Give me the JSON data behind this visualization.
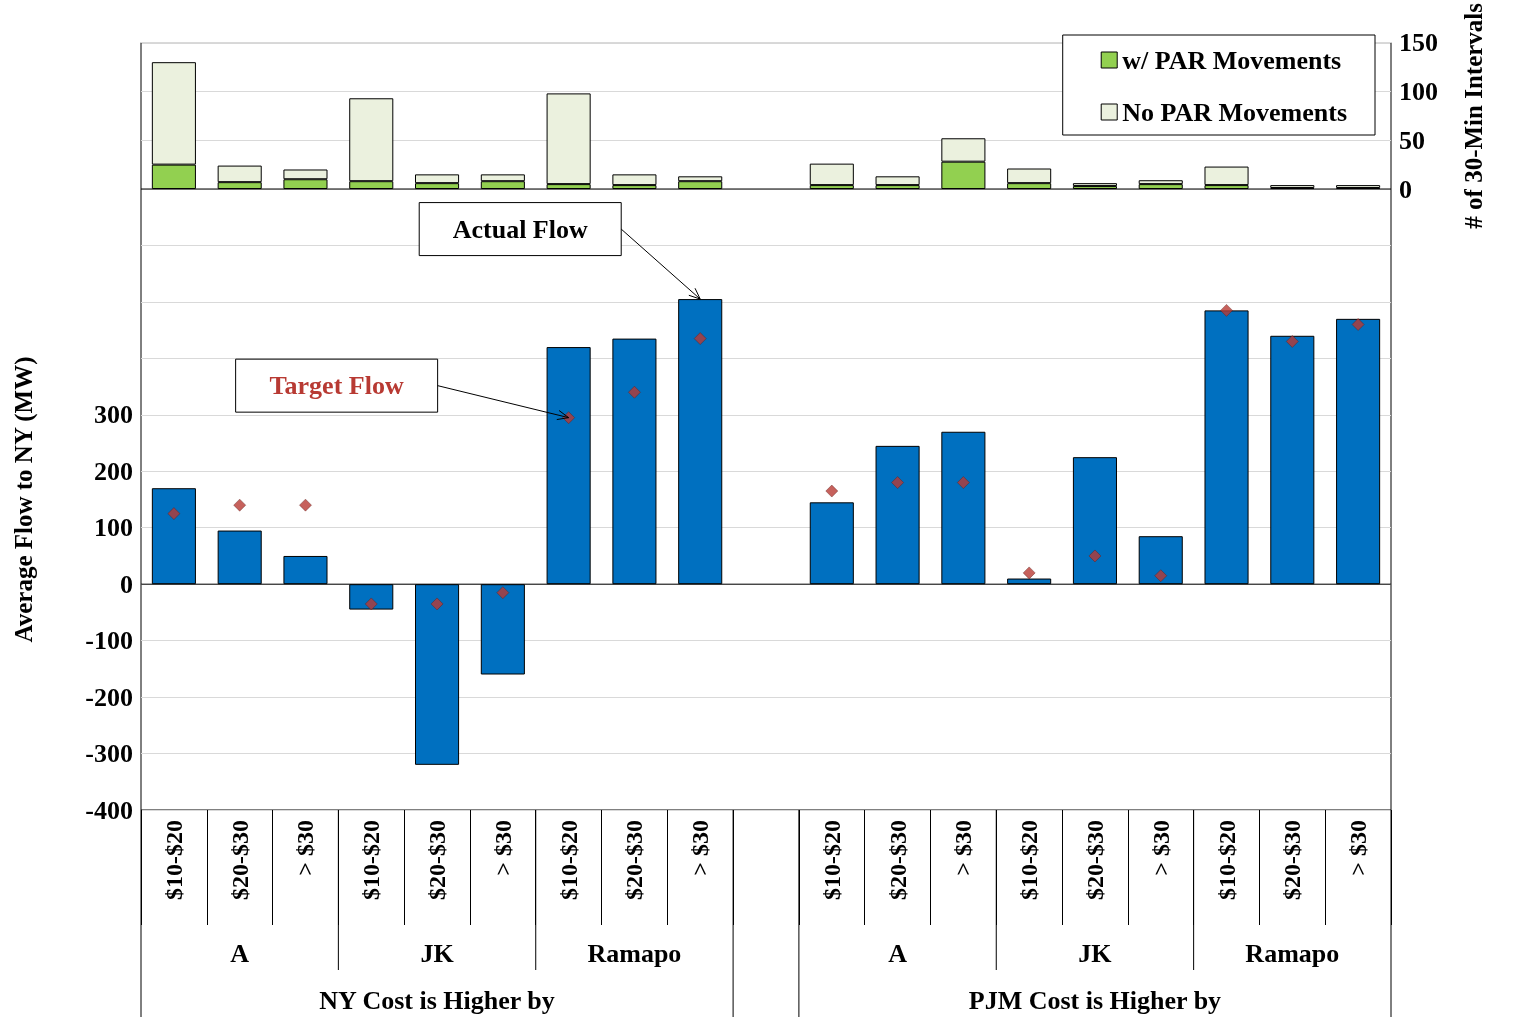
{
  "chart_data": [
    {
      "type": "bar",
      "stacked": true,
      "y2label": "# of 30-Min Intervals",
      "y2lim": [
        0,
        150
      ],
      "y2ticks": [
        0,
        50,
        100,
        150
      ],
      "grid": "y",
      "legend": "top right",
      "tick_labels": "y",
      "categories": [
        null,
        null,
        null,
        null,
        null,
        null,
        null,
        null,
        null,
        null,
        null,
        null,
        null,
        null,
        null,
        null,
        null,
        null,
        null
      ],
      "series": [
        {
          "name": "w/ PAR Movements",
          "color": "#92d050",
          "axis": "y2",
          "values": [
            25,
            7,
            10,
            8,
            6,
            8,
            5,
            4,
            8,
            null,
            4,
            4,
            28,
            6,
            3,
            5,
            4,
            1,
            1
          ]
        },
        {
          "name": "No PAR Movements",
          "color": "#ebf1de",
          "axis": "y2",
          "values": [
            105,
            17,
            10,
            85,
            9,
            7,
            93,
            11,
            5,
            null,
            22,
            9,
            24,
            15,
            3,
            4,
            19,
            3,
            3
          ]
        }
      ]
    },
    {
      "type": "bar",
      "ylabel": "Average Flow to NY (MW)",
      "ylim": [
        -400,
        700
      ],
      "yticks": [
        -400,
        -300,
        -200,
        -100,
        0,
        100,
        200,
        300,
        {
          "value": 400,
          "label": null
        },
        {
          "value": 500,
          "label": null
        },
        {
          "value": 600,
          "label": null
        }
      ],
      "grid": "y",
      "legend": false,
      "categories": [
        "$10-$20",
        "$20-$30",
        "> $30",
        "$10-$20",
        "$20-$30",
        "> $30",
        "$10-$20",
        "$20-$30",
        "> $30",
        null,
        "$10-$20",
        "$20-$30",
        "> $30",
        "$10-$20",
        "$20-$30",
        "> $30",
        "$10-$20",
        "$20-$30",
        "> $30"
      ],
      "series": [
        {
          "name": "Actual Flow",
          "type": "bar",
          "color": "#0070c0",
          "values": [
            170,
            95,
            50,
            -45,
            -320,
            -160,
            420,
            435,
            505,
            null,
            145,
            245,
            270,
            10,
            225,
            85,
            485,
            440,
            470
          ]
        },
        {
          "name": "Target Flow",
          "type": "scatter",
          "marker": "diamond",
          "color": "#b83a33",
          "values": [
            125,
            140,
            140,
            -35,
            -35,
            -15,
            295,
            340,
            435,
            null,
            165,
            180,
            180,
            20,
            50,
            15,
            485,
            430,
            460
          ]
        }
      ],
      "annotations": [
        "A",
        "JK",
        "Ramapo",
        "A",
        "JK",
        "Ramapo",
        "NY Cost is Higher by",
        "PJM Cost is Higher by"
      ]
    }
  ]
}
